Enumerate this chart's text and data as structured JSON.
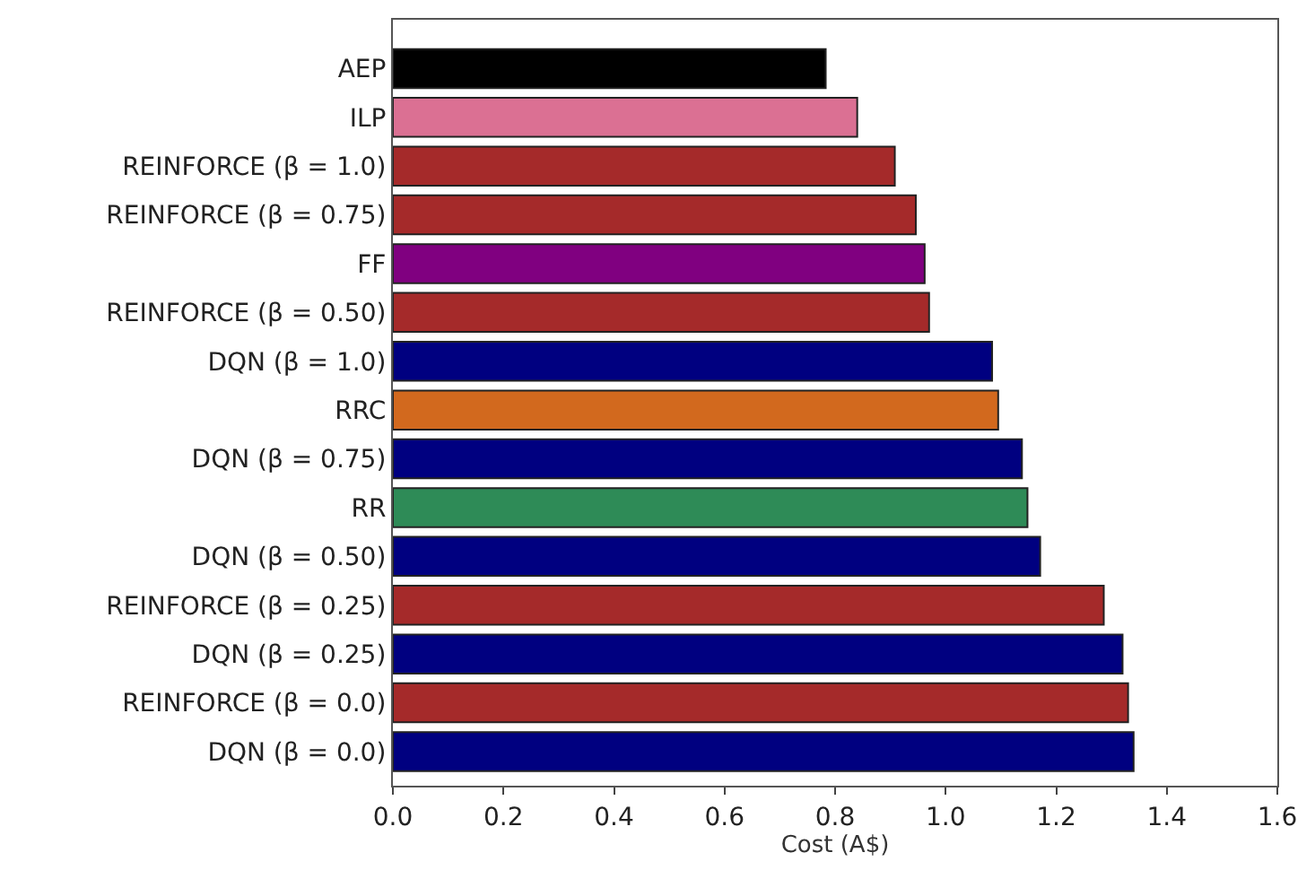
{
  "chart_data": {
    "type": "bar",
    "orientation": "horizontal",
    "xlabel": "Cost (A$)",
    "categories": [
      "AEP",
      "ILP",
      "REINFORCE (β = 1.0)",
      "REINFORCE (β = 0.75)",
      "FF",
      "REINFORCE (β = 0.50)",
      "DQN (β = 1.0)",
      "RRC",
      "DQN (β = 0.75)",
      "RR",
      "DQN (β = 0.50)",
      "REINFORCE (β = 0.25)",
      "DQN (β = 0.25)",
      "REINFORCE (β = 0.0)",
      "DQN (β = 0.0)"
    ],
    "values": [
      0.783,
      0.84,
      0.908,
      0.946,
      0.962,
      0.97,
      1.084,
      1.095,
      1.138,
      1.148,
      1.171,
      1.286,
      1.32,
      1.33,
      1.34
    ],
    "colors": [
      "#000000",
      "#db7093",
      "#a52a2a",
      "#a52a2a",
      "#800080",
      "#a52a2a",
      "#000080",
      "#d2691e",
      "#000080",
      "#2e8b57",
      "#000080",
      "#a52a2a",
      "#000080",
      "#a52a2a",
      "#000080"
    ],
    "xlim": [
      0.0,
      1.6
    ],
    "xticks": [
      {
        "value": 0,
        "label": "0.0"
      },
      {
        "value": 0.2,
        "label": "0.2"
      },
      {
        "value": 0.4,
        "label": "0.4"
      },
      {
        "value": 0.6,
        "label": "0.6"
      },
      {
        "value": 0.8,
        "label": "0.8"
      },
      {
        "value": 1.0,
        "label": "1.0"
      },
      {
        "value": 1.2,
        "label": "1.2"
      },
      {
        "value": 1.4,
        "label": "1.4"
      },
      {
        "value": 1.6,
        "label": "1.6"
      }
    ],
    "legend": false
  }
}
